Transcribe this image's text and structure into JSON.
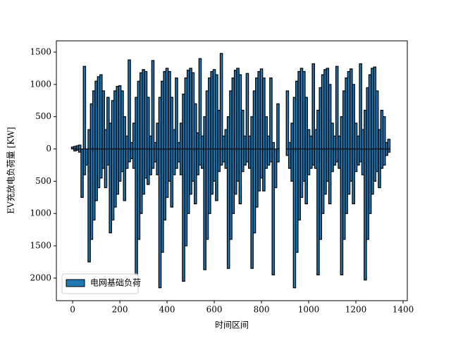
{
  "chart_data": {
    "type": "bar",
    "xlabel": "时间区间",
    "ylabel": "EV充放电负荷量 [KW]",
    "x": [
      0,
      10,
      20,
      30,
      40,
      50,
      60,
      70,
      80,
      90,
      100,
      110,
      120,
      130,
      140,
      150,
      160,
      170,
      180,
      190,
      200,
      210,
      220,
      230,
      240,
      250,
      260,
      270,
      280,
      290,
      300,
      310,
      320,
      330,
      340,
      350,
      360,
      370,
      380,
      390,
      400,
      410,
      420,
      430,
      440,
      450,
      460,
      470,
      480,
      490,
      500,
      510,
      520,
      530,
      540,
      550,
      560,
      570,
      580,
      590,
      600,
      610,
      620,
      630,
      640,
      650,
      660,
      670,
      680,
      690,
      700,
      710,
      720,
      730,
      740,
      750,
      760,
      770,
      780,
      790,
      800,
      810,
      820,
      830,
      840,
      850,
      860,
      870,
      880,
      890,
      900,
      910,
      920,
      930,
      940,
      950,
      960,
      970,
      980,
      990,
      1000,
      1010,
      1020,
      1030,
      1040,
      1050,
      1060,
      1070,
      1080,
      1090,
      1100,
      1110,
      1120,
      1130,
      1140,
      1150,
      1160,
      1170,
      1180,
      1190,
      1200,
      1210,
      1220,
      1230,
      1240,
      1250,
      1260,
      1270,
      1280,
      1290,
      1300,
      1310,
      1320,
      1330,
      1340
    ],
    "series": [
      {
        "name": "电网基础负荷",
        "color": "#1f77b4",
        "edgecolor": "#000000",
        "values": [
          30,
          40,
          50,
          60,
          0,
          1280,
          0,
          300,
          700,
          900,
          1050,
          1120,
          1150,
          900,
          300,
          800,
          400,
          750,
          900,
          970,
          980,
          900,
          500,
          200,
          1380,
          100,
          400,
          800,
          1050,
          1180,
          1230,
          1200,
          800,
          200,
          1370,
          100,
          400,
          800,
          1050,
          1200,
          1250,
          1200,
          800,
          300,
          1100,
          100,
          400,
          850,
          1100,
          1220,
          1250,
          1180,
          700,
          250,
          1400,
          200,
          500,
          900,
          1100,
          1200,
          1230,
          1150,
          600,
          1480,
          200,
          300,
          500,
          900,
          1100,
          1220,
          1250,
          1150,
          600,
          200,
          1170,
          200,
          500,
          900,
          1100,
          1200,
          1240,
          1100,
          500,
          200,
          1100,
          100,
          0,
          700,
          0,
          0,
          0,
          900,
          100,
          400,
          800,
          1050,
          1200,
          1250,
          1200,
          800,
          300,
          200,
          1320,
          300,
          600,
          950,
          1150,
          1230,
          1250,
          1000,
          400,
          200,
          1280,
          200,
          500,
          900,
          1100,
          1200,
          1240,
          1000,
          400,
          200,
          1320,
          300,
          600,
          950,
          1150,
          1250,
          1270,
          900,
          300,
          600,
          500,
          100,
          150
        ]
      },
      {
        "color": "#1f77b4",
        "edgecolor": "#000000",
        "values": [
          0,
          -30,
          -20,
          -50,
          -750,
          -400,
          -250,
          -1750,
          -1400,
          -1100,
          -800,
          -600,
          -450,
          -300,
          -600,
          -250,
          -1300,
          -1100,
          -900,
          -700,
          -500,
          -350,
          -800,
          -300,
          -200,
          -150,
          -300,
          -1950,
          -1400,
          -1000,
          -700,
          -450,
          -550,
          -400,
          -300,
          -200,
          -400,
          -2150,
          -1600,
          -1100,
          -750,
          -500,
          -900,
          -400,
          -300,
          -200,
          -400,
          -2050,
          -1500,
          -1000,
          -700,
          -500,
          -850,
          -400,
          -250,
          -300,
          -1870,
          -1400,
          -1000,
          -700,
          -500,
          -800,
          -350,
          -250,
          -200,
          -300,
          -1850,
          -1400,
          -1000,
          -700,
          -500,
          -850,
          -350,
          -250,
          -200,
          -300,
          -1850,
          -1300,
          -900,
          -650,
          -450,
          -650,
          -300,
          -250,
          -200,
          -1950,
          -600,
          -200,
          0,
          0,
          0,
          -100,
          -300,
          -500,
          -2150,
          -1600,
          -1100,
          -750,
          -500,
          -850,
          -400,
          -300,
          -250,
          -300,
          -1950,
          -1400,
          -1000,
          -700,
          -500,
          -850,
          -350,
          -250,
          -200,
          -300,
          -1950,
          -1400,
          -1000,
          -700,
          -500,
          -850,
          -350,
          -250,
          -200,
          -400,
          -2030,
          -1400,
          -1000,
          -700,
          -500,
          -350,
          -600,
          -300,
          -250,
          -100,
          -50
        ]
      }
    ],
    "bar_width": 10,
    "xlim": [
      -69,
      1418
    ],
    "ylim": [
      -2350,
      1675
    ],
    "xticks": [
      0,
      200,
      400,
      600,
      800,
      1000,
      1200,
      1400
    ],
    "yticks": [
      {
        "value": -2000,
        "label": "2000"
      },
      {
        "value": -1500,
        "label": "1500"
      },
      {
        "value": -1000,
        "label": "1000"
      },
      {
        "value": -500,
        "label": "500"
      },
      0,
      500,
      1000,
      1500
    ],
    "legend": "lower left"
  }
}
